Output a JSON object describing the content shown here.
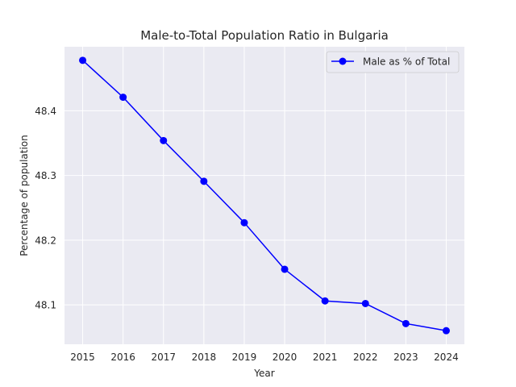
{
  "chart_data": {
    "type": "line",
    "title": "Male-to-Total Population Ratio in Bulgaria",
    "xlabel": "Year",
    "ylabel": "Percentage of population",
    "x": [
      2015,
      2016,
      2017,
      2018,
      2019,
      2020,
      2021,
      2022,
      2023,
      2024
    ],
    "series": [
      {
        "name": "Male as % of Total",
        "values": [
          48.478,
          48.421,
          48.354,
          48.291,
          48.227,
          48.155,
          48.106,
          48.102,
          48.071,
          48.06
        ],
        "color": "#0000ff",
        "marker": "circle"
      }
    ],
    "xticks": [
      "2015",
      "2016",
      "2017",
      "2018",
      "2019",
      "2020",
      "2021",
      "2022",
      "2023",
      "2024"
    ],
    "yticks": [
      "48.1",
      "48.2",
      "48.3",
      "48.4"
    ],
    "ytick_values": [
      48.1,
      48.2,
      48.3,
      48.4
    ],
    "xlim": [
      2014.55,
      2024.45
    ],
    "ylim": [
      48.039,
      48.499
    ],
    "grid": true,
    "legend": "top-right",
    "colors": {
      "axes_bg": "#eaeaf2",
      "grid": "#ffffff",
      "text": "#262626"
    }
  }
}
